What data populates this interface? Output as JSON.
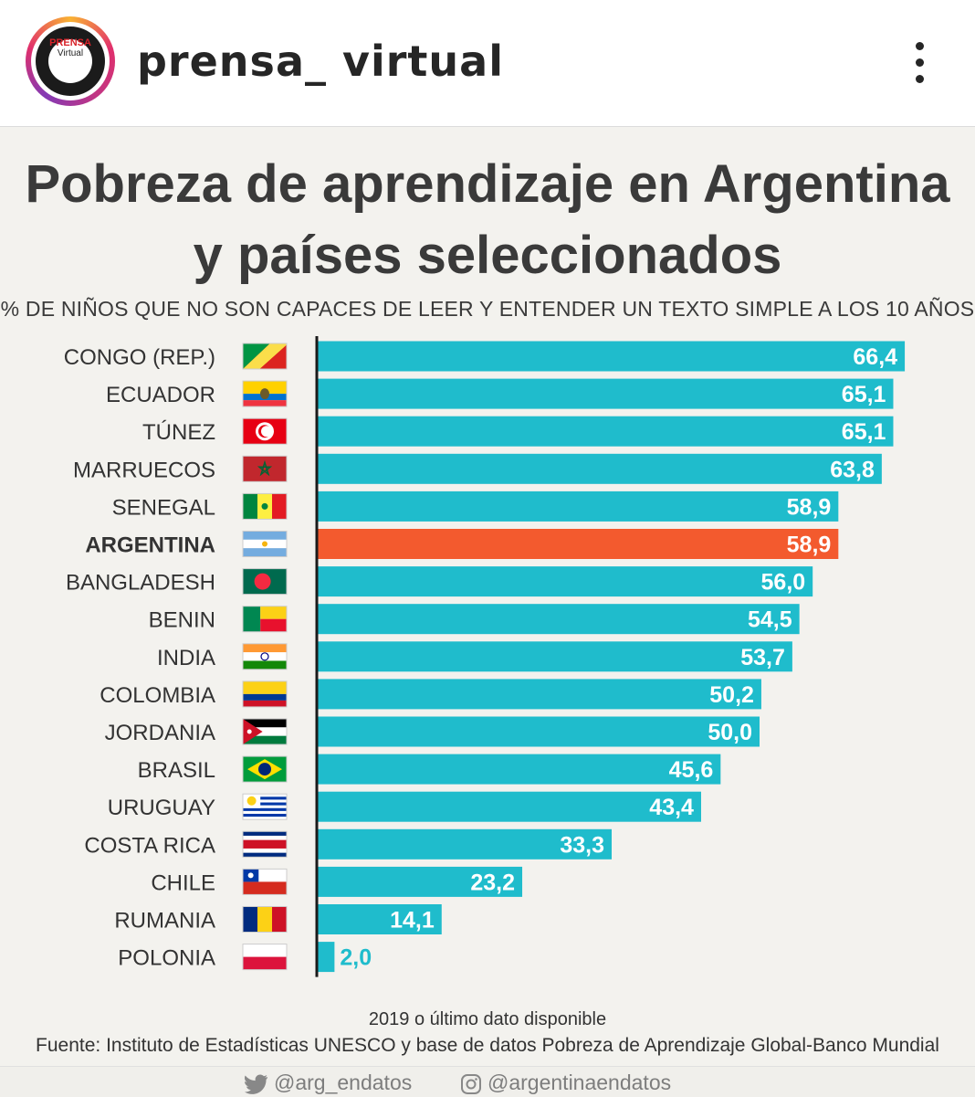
{
  "header": {
    "username": "prensa_ virtual",
    "logo_top": "PRENSA",
    "logo_bottom": "Virtual"
  },
  "title_line1": "Pobreza de aprendizaje en Argentina",
  "title_line2": "y países seleccionados",
  "subtitle": "% DE NIÑOS QUE NO SON CAPACES DE LEER Y ENTENDER UN TEXTO SIMPLE A LOS 10 AÑOS",
  "chart_data": {
    "type": "bar",
    "orientation": "horizontal",
    "categories": [
      "CONGO (REP.)",
      "ECUADOR",
      "TÚNEZ",
      "MARRUECOS",
      "SENEGAL",
      "ARGENTINA",
      "BANGLADESH",
      "BENIN",
      "INDIA",
      "COLOMBIA",
      "JORDANIA",
      "BRASIL",
      "URUGUAY",
      "COSTA RICA",
      "CHILE",
      "RUMANIA",
      "POLONIA"
    ],
    "values": [
      66.4,
      65.1,
      65.1,
      63.8,
      58.9,
      58.9,
      56.0,
      54.5,
      53.7,
      50.2,
      50.0,
      45.6,
      43.4,
      33.3,
      23.2,
      14.1,
      2.0
    ],
    "value_labels": [
      "66,4",
      "65,1",
      "65,1",
      "63,8",
      "58,9",
      "58,9",
      "56,0",
      "54,5",
      "53,7",
      "50,2",
      "50,0",
      "45,6",
      "43,4",
      "33,3",
      "23,2",
      "14,1",
      "2,0"
    ],
    "highlight": "ARGENTINA",
    "colors": {
      "bar": "#1fbccc",
      "highlight": "#f35a2e"
    },
    "flags": [
      "congo",
      "ecuador",
      "tunez",
      "marruecos",
      "senegal",
      "argentina",
      "bangladesh",
      "benin",
      "india",
      "colombia",
      "jordania",
      "brasil",
      "uruguay",
      "costa-rica",
      "chile",
      "rumania",
      "polonia"
    ],
    "grid": false
  },
  "footer": {
    "note": "2019 o último dato disponible",
    "source": "Fuente: Instituto de Estadísticas UNESCO y base de datos Pobreza de Aprendizaje Global-Banco Mundial",
    "twitter": "@arg_endatos",
    "instagram": "@argentinaendatos"
  }
}
